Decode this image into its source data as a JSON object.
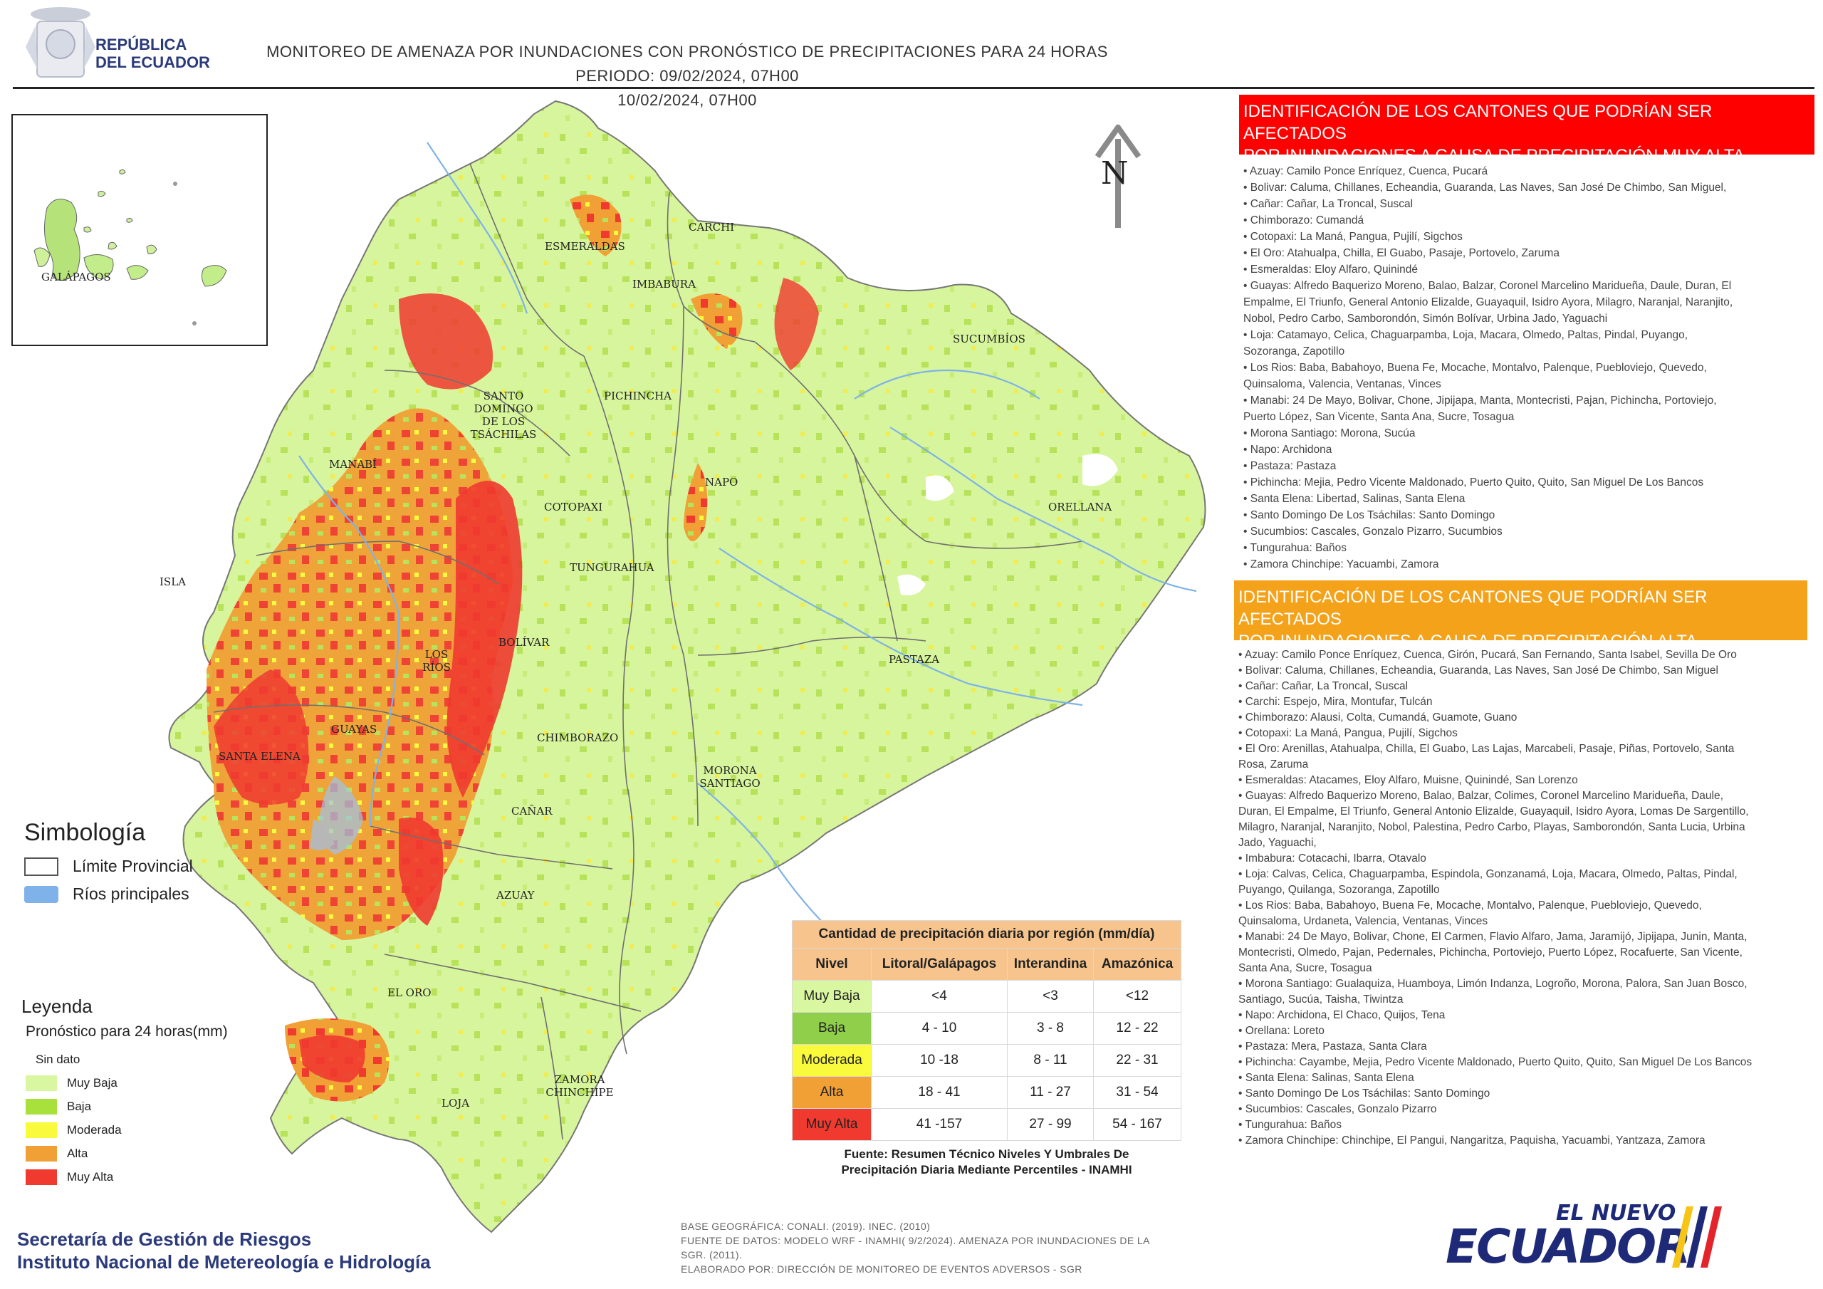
{
  "header": {
    "country_line1": "REPÚBLICA",
    "country_line2": "DEL ECUADOR",
    "title_line1": "MONITOREO DE AMENAZA POR INUNDACIONES  CON PRONÓSTICO DE  PRECIPITACIONES PARA 24 HORAS  PERIODO: 09/02/2024, 07H00",
    "title_line2": "10/02/2024, 07H00"
  },
  "inset": {
    "label": "GALÁPAGOS"
  },
  "north_label": "N",
  "map_labels": {
    "carchi": "CARCHI",
    "esmeraldas": "ESMERALDAS",
    "imbabura": "IMBABURA",
    "sucumbios": "SUCUMBÍOS",
    "santo_domingo": "SANTO DOMINGO DE LOS TSÁCHILAS",
    "pichincha": "PICHINCHA",
    "manabi": "MANABÍ",
    "napo": "NAPO",
    "orellana": "ORELLANA",
    "cotopaxi": "COTOPAXI",
    "tungurahua": "TUNGURAHUA",
    "isla": "ISLA",
    "los_rios": "LOS RÍOS",
    "bolivar": "BOLÍVAR",
    "pastaza": "PASTAZA",
    "guayas": "GUAYAS",
    "chimborazo": "CHIMBORAZO",
    "santa_elena": "SANTA ELENA",
    "morona_santiago": "MORONA SANTIAGO",
    "canar": "CAÑAR",
    "azuay": "AZUAY",
    "el_oro": "EL ORO",
    "loja": "LOJA",
    "zamora": "ZAMORA CHINCHIPE"
  },
  "symbology": {
    "title": "Simbología",
    "items": [
      {
        "label": "Límite Provincial",
        "color": "#ffffff"
      },
      {
        "label": "Ríos principales",
        "color": "#7fb2e8"
      }
    ]
  },
  "legend": {
    "title": "Leyenda",
    "subtitle": "Pronóstico para 24 horas(mm)",
    "items": [
      {
        "label": "Sin dato",
        "color": "#ffffff"
      },
      {
        "label": "Muy Baja",
        "color": "#d9f7a0"
      },
      {
        "label": "Baja",
        "color": "#a8e03c"
      },
      {
        "label": "Moderada",
        "color": "#fafa3c"
      },
      {
        "label": "Alta",
        "color": "#f0a035"
      },
      {
        "label": "Muy Alta",
        "color": "#f03a30"
      }
    ]
  },
  "precip_table": {
    "title": "Cantidad de precipitación diaria por región (mm/día)",
    "headers": [
      "Nivel",
      "Litoral/Galápagos",
      "Interandina",
      "Amazónica"
    ],
    "rows": [
      {
        "nivel": "Muy Baja",
        "color": "#d9f7a0",
        "litoral": "<4",
        "interandina": "<3",
        "amazonica": "<12"
      },
      {
        "nivel": "Baja",
        "color": "#8fcf4a",
        "litoral": "4 - 10",
        "interandina": "3 - 8",
        "amazonica": "12 - 22"
      },
      {
        "nivel": "Moderada",
        "color": "#fafa3c",
        "litoral": "10 -18",
        "interandina": "8 - 11",
        "amazonica": "22 - 31"
      },
      {
        "nivel": "Alta",
        "color": "#f0a035",
        "litoral": "18 - 41",
        "interandina": "11 - 27",
        "amazonica": "31 - 54"
      },
      {
        "nivel": "Muy Alta",
        "color": "#f03a30",
        "litoral": "41 -157",
        "interandina": "27 - 99",
        "amazonica": "54 - 167"
      }
    ],
    "source_line1": "Fuente: Resumen Técnico Niveles Y Umbrales De",
    "source_line2": "Precipitación Diaria Mediante Percentiles - INAMHI"
  },
  "muy_alta_panel": {
    "heading_line1": "IDENTIFICACIÓN DE LOS CANTONES QUE PODRÍAN SER AFECTADOS",
    "heading_line2": "POR INUNDACIONES  A CAUSA DE PRECIPITACIÓN MUY ALTA",
    "color": "#ff0000",
    "lines": [
      "• Azuay: Camilo Ponce Enríquez, Cuenca, Pucará",
      "• Bolivar: Caluma, Chillanes, Echeandia, Guaranda, Las Naves, San José De Chimbo, San Miguel,",
      "• Cañar: Cañar, La Troncal, Suscal",
      "• Chimborazo: Cumandá",
      "• Cotopaxi: La Maná, Pangua, Pujilí, Sigchos",
      "• El Oro: Atahualpa, Chilla, El Guabo, Pasaje, Portovelo, Zaruma",
      "• Esmeraldas: Eloy Alfaro, Quinindé",
      "• Guayas: Alfredo Baquerizo Moreno, Balao, Balzar, Coronel Marcelino Maridueña, Daule, Duran, El",
      "Empalme, El Triunfo, General Antonio Elizalde, Guayaquil, Isidro Ayora, Milagro, Naranjal, Naranjito,",
      "Nobol, Pedro Carbo, Samborondón, Simón Bolívar, Urbina Jado, Yaguachi",
      "• Loja: Catamayo, Celica, Chaguarpamba, Loja, Macara, Olmedo, Paltas, Pindal, Puyango,",
      "Sozoranga, Zapotillo",
      "• Los Rios: Baba, Babahoyo, Buena Fe, Mocache, Montalvo, Palenque, Puebloviejo, Quevedo,",
      "Quinsaloma, Valencia, Ventanas, Vinces",
      "• Manabi: 24 De Mayo, Bolivar, Chone, Jipijapa, Manta, Montecristi, Pajan, Pichincha, Portoviejo,",
      "Puerto López, San Vicente, Santa Ana, Sucre, Tosagua",
      "• Morona Santiago: Morona, Sucúa",
      "• Napo: Archidona",
      "• Pastaza: Pastaza",
      "• Pichincha: Mejia, Pedro Vicente Maldonado, Puerto Quito, Quito, San Miguel De Los Bancos",
      "• Santa Elena: Libertad, Salinas, Santa Elena",
      "• Santo Domingo De Los Tsáchilas: Santo Domingo",
      "• Sucumbios: Cascales, Gonzalo Pizarro, Sucumbios",
      "• Tungurahua: Baños",
      "• Zamora Chinchipe: Yacuambi, Zamora"
    ]
  },
  "alta_panel": {
    "heading_line1": "IDENTIFICACIÓN DE LOS CANTONES QUE  PODRÍAN SER AFECTADOS",
    "heading_line2": "POR INUNDACIONES  A CAUSA DE PRECIPITACIÓN  ALTA",
    "color": "#f5a21b",
    "lines": [
      "• Azuay: Camilo Ponce Enríquez, Cuenca, Girón, Pucará, San Fernando, Santa Isabel, Sevilla De Oro",
      "• Bolivar: Caluma, Chillanes, Echeandia, Guaranda, Las Naves, San José De Chimbo, San Miguel",
      "• Cañar: Cañar, La Troncal, Suscal",
      "• Carchi: Espejo, Mira, Montufar, Tulcán",
      "• Chimborazo: Alausi, Colta, Cumandá, Guamote, Guano",
      "• Cotopaxi: La Maná, Pangua, Pujilí, Sigchos",
      "• El Oro: Arenillas, Atahualpa, Chilla, El Guabo, Las Lajas, Marcabeli, Pasaje, Piñas, Portovelo, Santa",
      "Rosa, Zaruma",
      "• Esmeraldas: Atacames, Eloy Alfaro, Muisne, Quinindé, San Lorenzo",
      "• Guayas: Alfredo Baquerizo Moreno, Balao, Balzar, Colimes, Coronel Marcelino Maridueña, Daule,",
      "Duran, El Empalme, El Triunfo, General Antonio Elizalde, Guayaquil, Isidro Ayora, Lomas De Sargentillo,",
      "Milagro, Naranjal, Naranjito, Nobol, Palestina, Pedro Carbo, Playas, Samborondón, Santa Lucia, Urbina",
      "Jado, Yaguachi,",
      "• Imbabura: Cotacachi, Ibarra, Otavalo",
      "• Loja: Calvas, Celica, Chaguarpamba, Espindola, Gonzanamá, Loja, Macara, Olmedo, Paltas, Pindal,",
      "Puyango, Quilanga, Sozoranga, Zapotillo",
      "• Los Rios: Baba, Babahoyo, Buena Fe, Mocache, Montalvo, Palenque, Puebloviejo, Quevedo,",
      "Quinsaloma, Urdaneta, Valencia, Ventanas, Vinces",
      "• Manabi: 24 De Mayo, Bolivar, Chone, El Carmen, Flavio Alfaro, Jama, Jaramijó, Jipijapa, Junin, Manta,",
      "Montecristi, Olmedo, Pajan, Pedernales, Pichincha, Portoviejo, Puerto López, Rocafuerte, San Vicente,",
      "Santa Ana, Sucre, Tosagua",
      "• Morona Santiago: Gualaquiza, Huamboya, Limón Indanza, Logroño, Morona, Palora, San Juan Bosco,",
      "Santiago, Sucúa, Taisha, Tiwintza",
      "• Napo: Archidona, El Chaco, Quijos, Tena",
      "• Orellana: Loreto",
      "• Pastaza: Mera, Pastaza, Santa Clara",
      "• Pichincha: Cayambe, Mejia, Pedro Vicente Maldonado, Puerto Quito, Quito, San Miguel De Los Bancos",
      "• Santa Elena: Salinas, Santa Elena",
      "• Santo Domingo De Los Tsáchilas: Santo Domingo",
      "• Sucumbios: Cascales, Gonzalo Pizarro",
      "• Tungurahua: Baños",
      "• Zamora Chinchipe: Chinchipe, El Pangui, Nangaritza, Paquisha, Yacuambi, Yantzaza, Zamora"
    ]
  },
  "footer": {
    "org_line1": "Secretaría de Gestión de Riesgos",
    "org_line2": "Instituto Nacional de Metereología e Hidrología",
    "base_lines": [
      "BASE GEOGRÁFICA: CONALI. (2019). INEC. (2010)",
      "FUENTE DE DATOS: MODELO WRF - INAMHI( 9/2/2024).  AMENAZA POR INUNDACIONES DE LA",
      "SGR. (2011).",
      "ELABORADO POR: DIRECCIÓN DE MONITOREO DE EVENTOS ADVERSOS - SGR"
    ],
    "brand_top": "EL NUEVO",
    "brand_main": "ECUADOR"
  }
}
